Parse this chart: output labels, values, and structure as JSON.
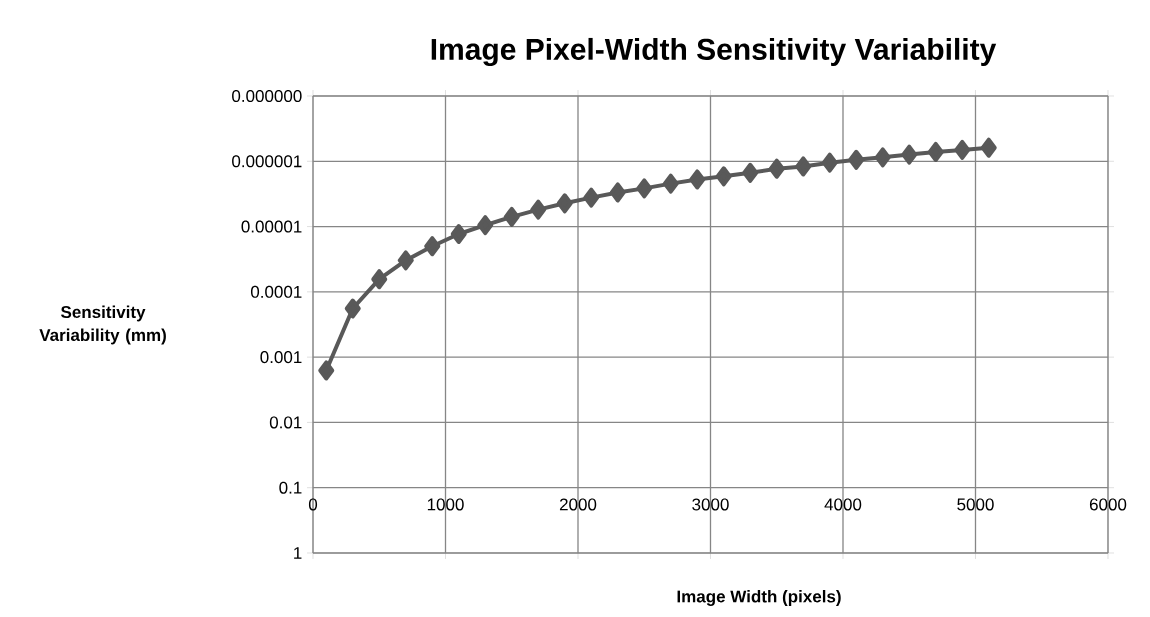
{
  "chart_data": {
    "type": "line",
    "title": "Image Pixel-Width Sensitivity Variability",
    "xlabel": "Image Width (pixels)",
    "ylabel": "Sensitivity Variability (mm)",
    "x": [
      100,
      300,
      500,
      700,
      900,
      1100,
      1300,
      1500,
      1700,
      1900,
      2100,
      2300,
      2500,
      2700,
      2900,
      3100,
      3300,
      3500,
      3700,
      3900,
      4100,
      4300,
      4500,
      4700,
      4900,
      5100
    ],
    "series": [
      {
        "color": "#595959",
        "values": [
          0.0016,
          0.00018,
          6.4e-05,
          3.3e-05,
          2e-05,
          1.3e-05,
          9.5e-06,
          7.1e-06,
          5.5e-06,
          4.4e-06,
          3.6e-06,
          3e-06,
          2.6e-06,
          2.2e-06,
          1.9e-06,
          1.7e-06,
          1.5e-06,
          1.3e-06,
          1.2e-06,
          1.05e-06,
          9.5e-07,
          8.7e-07,
          7.9e-07,
          7.2e-07,
          6.7e-07,
          6.2e-07
        ]
      }
    ],
    "xlim": [
      0,
      6000
    ],
    "xticks": [
      0,
      1000,
      2000,
      3000,
      4000,
      5000,
      6000
    ],
    "ylim": [
      1,
      1e-07
    ],
    "yticks": [
      {
        "value": 1e-07,
        "label": "0.000000"
      },
      {
        "value": 1e-06,
        "label": "0.000001"
      },
      {
        "value": 1e-05,
        "label": "0.00001"
      },
      {
        "value": 0.0001,
        "label": "0.0001"
      },
      {
        "value": 0.001,
        "label": "0.001"
      },
      {
        "value": 0.01,
        "label": "0.01"
      },
      {
        "value": 0.1,
        "label": "0.1"
      },
      {
        "value": 1,
        "label": "1"
      }
    ],
    "log": "y",
    "grid": true,
    "marker": "diamond",
    "line_style": "solid"
  }
}
